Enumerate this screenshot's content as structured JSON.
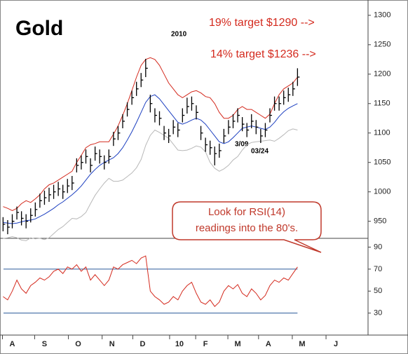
{
  "chart_data": [
    {
      "type": "ohlc",
      "title": "Gold",
      "subtitle": "2010",
      "annotations": [
        "19% target $1290 -->",
        "14% target $1236 -->",
        "3/09",
        "03/24"
      ],
      "x": [
        0,
        3,
        6,
        9,
        12,
        15,
        18,
        21,
        24,
        27,
        30,
        33,
        36,
        39,
        42,
        45,
        48,
        51,
        54,
        57,
        60,
        63,
        66,
        69,
        72,
        75,
        78,
        81,
        84,
        87,
        90,
        93,
        96,
        99,
        102,
        105,
        108,
        111,
        114,
        117,
        120,
        123,
        126,
        129,
        132,
        135,
        138,
        141,
        144,
        147,
        150,
        153,
        156,
        159,
        162,
        165,
        168,
        171,
        174,
        177,
        180,
        183,
        186,
        189,
        192
      ],
      "high": [
        957,
        952,
        962,
        975,
        967,
        962,
        972,
        982,
        997,
        1002,
        1007,
        1012,
        1017,
        1012,
        1022,
        1027,
        1057,
        1062,
        1072,
        1057,
        1077,
        1072,
        1062,
        1072,
        1102,
        1112,
        1132,
        1152,
        1172,
        1187,
        1202,
        1226,
        1165,
        1142,
        1137,
        1112,
        1107,
        1122,
        1117,
        1142,
        1160,
        1162,
        1147,
        1112,
        1092,
        1087,
        1077,
        1082,
        1107,
        1122,
        1132,
        1142,
        1127,
        1117,
        1132,
        1122,
        1107,
        1117,
        1142,
        1162,
        1162,
        1172,
        1177,
        1187,
        1210
      ],
      "low": [
        933,
        928,
        938,
        953,
        943,
        938,
        948,
        958,
        973,
        978,
        983,
        988,
        993,
        988,
        998,
        1003,
        1033,
        1038,
        1048,
        1033,
        1053,
        1048,
        1038,
        1048,
        1078,
        1088,
        1108,
        1128,
        1148,
        1163,
        1178,
        1195,
        1135,
        1118,
        1113,
        1088,
        1083,
        1098,
        1093,
        1118,
        1133,
        1138,
        1123,
        1088,
        1068,
        1063,
        1045,
        1058,
        1083,
        1098,
        1108,
        1118,
        1103,
        1093,
        1108,
        1098,
        1083,
        1093,
        1118,
        1138,
        1138,
        1148,
        1153,
        1163,
        1180
      ],
      "close": [
        945,
        940,
        950,
        965,
        955,
        950,
        960,
        970,
        985,
        990,
        995,
        1000,
        1005,
        1000,
        1010,
        1015,
        1045,
        1050,
        1060,
        1045,
        1065,
        1060,
        1050,
        1060,
        1090,
        1100,
        1120,
        1140,
        1160,
        1175,
        1190,
        1210,
        1150,
        1130,
        1125,
        1100,
        1095,
        1110,
        1105,
        1130,
        1145,
        1150,
        1135,
        1100,
        1080,
        1075,
        1065,
        1070,
        1095,
        1110,
        1120,
        1130,
        1115,
        1105,
        1120,
        1110,
        1095,
        1105,
        1130,
        1150,
        1150,
        1160,
        1165,
        1175,
        1195
      ],
      "series": [
        {
          "color": "#1c3fc0",
          "values": [
            948,
            947,
            946,
            947,
            949,
            951,
            952,
            954,
            958,
            962,
            967,
            972,
            978,
            983,
            989,
            995,
            1002,
            1010,
            1020,
            1030,
            1038,
            1045,
            1050,
            1054,
            1058,
            1065,
            1075,
            1088,
            1102,
            1118,
            1135,
            1152,
            1162,
            1165,
            1158,
            1148,
            1138,
            1128,
            1118,
            1115,
            1118,
            1122,
            1125,
            1122,
            1115,
            1105,
            1095,
            1085,
            1082,
            1085,
            1092,
            1100,
            1108,
            1110,
            1112,
            1110,
            1108,
            1106,
            1110,
            1118,
            1128,
            1136,
            1142,
            1146,
            1150
          ]
        },
        {
          "color": "#d42a1e",
          "values": [
            975,
            972,
            968,
            972,
            980,
            985,
            982,
            988,
            995,
            1005,
            1012,
            1015,
            1020,
            1025,
            1030,
            1035,
            1050,
            1062,
            1075,
            1080,
            1082,
            1085,
            1085,
            1085,
            1098,
            1112,
            1130,
            1150,
            1172,
            1195,
            1215,
            1225,
            1228,
            1225,
            1215,
            1200,
            1185,
            1175,
            1165,
            1160,
            1165,
            1170,
            1172,
            1168,
            1162,
            1160,
            1150,
            1135,
            1125,
            1125,
            1130,
            1140,
            1145,
            1140,
            1140,
            1135,
            1130,
            1125,
            1132,
            1150,
            1165,
            1175,
            1180,
            1185,
            1195
          ]
        },
        {
          "color": "#b8b8b8",
          "values": [
            921,
            922,
            924,
            922,
            918,
            917,
            922,
            920,
            921,
            919,
            922,
            929,
            936,
            941,
            948,
            955,
            954,
            958,
            965,
            980,
            994,
            1005,
            1015,
            1023,
            1018,
            1018,
            1020,
            1026,
            1032,
            1041,
            1055,
            1079,
            1096,
            1105,
            1101,
            1096,
            1091,
            1081,
            1071,
            1070,
            1071,
            1074,
            1078,
            1076,
            1068,
            1050,
            1040,
            1035,
            1039,
            1045,
            1054,
            1060,
            1071,
            1080,
            1084,
            1085,
            1086,
            1087,
            1088,
            1086,
            1091,
            1097,
            1104,
            1107,
            1105
          ]
        }
      ],
      "xlim": [
        -2,
        238
      ],
      "ylim": [
        921,
        1326
      ],
      "yticks": [
        {
          "value": 950,
          "label": "950"
        },
        1000,
        1050,
        1100,
        1150,
        1200,
        1250,
        1300
      ]
    },
    {
      "type": "line",
      "callout": [
        "Look for RSI(14)",
        "readings into the 80's."
      ],
      "x": [
        0,
        3,
        6,
        9,
        12,
        15,
        18,
        21,
        24,
        27,
        30,
        33,
        36,
        39,
        42,
        45,
        48,
        51,
        54,
        57,
        60,
        63,
        66,
        69,
        72,
        75,
        78,
        81,
        84,
        87,
        90,
        93,
        96,
        99,
        102,
        105,
        108,
        111,
        114,
        117,
        120,
        123,
        126,
        129,
        132,
        135,
        138,
        141,
        144,
        147,
        150,
        153,
        156,
        159,
        162,
        165,
        168,
        171,
        174,
        177,
        180,
        183,
        186,
        189,
        192
      ],
      "series": [
        {
          "color": "#d42a1e",
          "values": [
            45,
            42,
            50,
            60,
            52,
            48,
            55,
            58,
            62,
            60,
            63,
            68,
            70,
            66,
            72,
            70,
            74,
            68,
            72,
            60,
            65,
            60,
            55,
            60,
            72,
            70,
            74,
            76,
            78,
            75,
            80,
            82,
            50,
            45,
            42,
            38,
            40,
            45,
            42,
            50,
            55,
            58,
            48,
            40,
            38,
            42,
            36,
            40,
            50,
            55,
            52,
            56,
            48,
            45,
            52,
            48,
            42,
            46,
            55,
            60,
            58,
            62,
            60,
            66,
            72
          ]
        }
      ],
      "levels": [
        70,
        30
      ],
      "level_color": "#2a5a9a",
      "xlim": [
        -2,
        238
      ],
      "ylim": [
        10,
        98
      ],
      "yticks": [
        30,
        50,
        70,
        90
      ],
      "xticks": [
        {
          "value": 6,
          "label": "A"
        },
        {
          "value": 27,
          "label": "S"
        },
        {
          "value": 49,
          "label": "O"
        },
        {
          "value": 71,
          "label": "N"
        },
        {
          "value": 91,
          "label": "D"
        },
        {
          "value": 115,
          "label": "10"
        },
        {
          "value": 132,
          "label": "F"
        },
        {
          "value": 153,
          "label": "M"
        },
        {
          "value": 173,
          "label": "A"
        },
        {
          "value": 195,
          "label": "M"
        },
        {
          "value": 217,
          "label": "J"
        }
      ]
    }
  ]
}
